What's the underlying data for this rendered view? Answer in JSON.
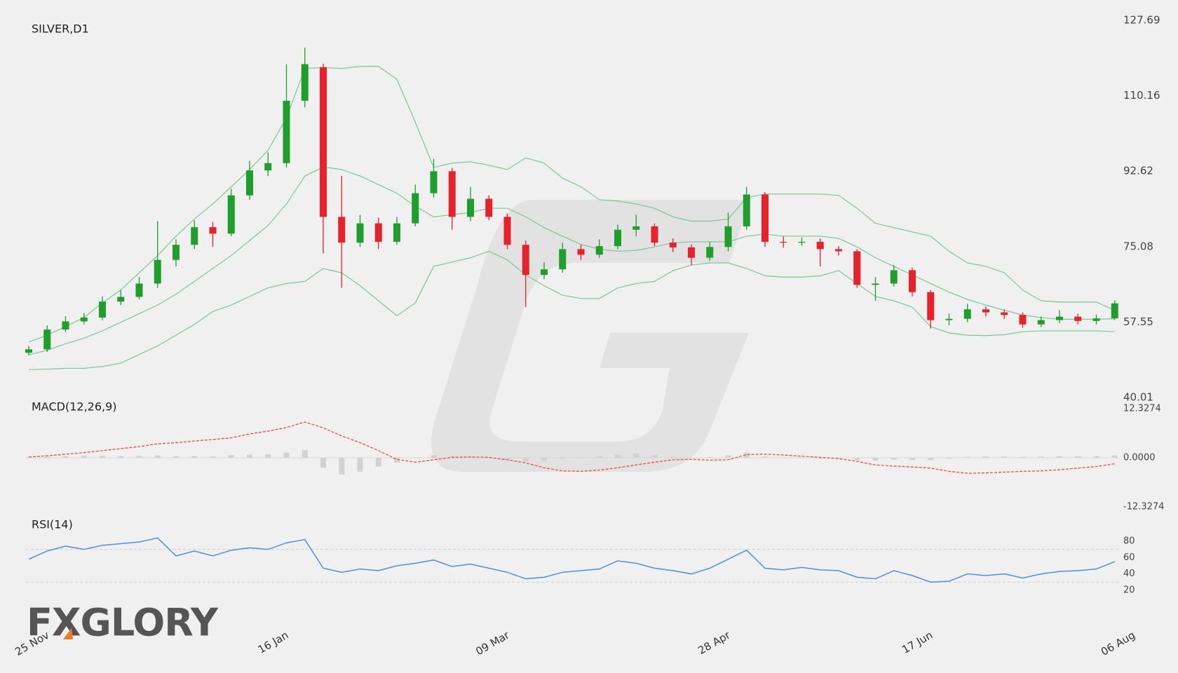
{
  "logo": "FXGLORY",
  "chart_data": [
    {
      "type": "candlestick",
      "title": "SILVER,D1",
      "categories": [
        "25 Nov",
        null,
        null,
        null,
        null,
        null,
        null,
        null,
        null,
        null,
        null,
        null,
        null,
        "16 Jan",
        null,
        null,
        null,
        null,
        null,
        null,
        null,
        null,
        null,
        null,
        null,
        "09 Mar",
        null,
        null,
        null,
        null,
        null,
        null,
        null,
        null,
        null,
        null,
        null,
        "28 Apr",
        null,
        null,
        null,
        null,
        null,
        null,
        null,
        null,
        null,
        null,
        "17 Jun",
        null,
        null,
        null,
        null,
        null,
        null,
        null,
        null,
        null,
        null,
        "06 Aug"
      ],
      "open": [
        50.4,
        51.2,
        55.8,
        57.7,
        58.6,
        62.3,
        63.4,
        66.5,
        72.0,
        75.5,
        79.6,
        78.1,
        87.0,
        92.8,
        94.5,
        109.0,
        116.8,
        82.0,
        76.0,
        80.5,
        76.2,
        80.5,
        87.5,
        92.6,
        82.0,
        86.2,
        82.0,
        75.5,
        68.5,
        69.8,
        74.5,
        73.2,
        75.2,
        79.0,
        79.8,
        76.0,
        74.9,
        72.5,
        75.0,
        79.8,
        87.2,
        76.2,
        76.0,
        76.2,
        74.5,
        74.0,
        66.2,
        66.5,
        69.6,
        64.5,
        58.0,
        58.3,
        60.5,
        59.8,
        59.2,
        57.0,
        58.0,
        58.8,
        57.8,
        58.4
      ],
      "high": [
        52.0,
        56.8,
        58.9,
        59.6,
        63.5,
        65.0,
        68.0,
        81.0,
        76.8,
        81.2,
        80.8,
        88.5,
        95.0,
        97.0,
        117.5,
        121.3,
        117.6,
        91.5,
        82.5,
        81.8,
        82.0,
        89.5,
        95.5,
        93.4,
        89.0,
        87.0,
        82.8,
        76.5,
        71.5,
        76.0,
        75.5,
        76.8,
        80.2,
        82.5,
        80.5,
        77.0,
        75.6,
        76.2,
        83.0,
        89.0,
        87.8,
        77.5,
        77.2,
        77.0,
        75.2,
        74.5,
        68.0,
        70.8,
        70.2,
        65.0,
        59.5,
        61.8,
        61.2,
        60.5,
        59.8,
        58.8,
        60.3,
        59.5,
        59.3,
        62.6
      ],
      "low": [
        49.8,
        50.6,
        55.2,
        57.0,
        58.0,
        61.5,
        62.8,
        65.5,
        70.5,
        74.5,
        75.0,
        77.5,
        86.0,
        91.5,
        93.5,
        107.5,
        73.5,
        65.5,
        75.0,
        74.5,
        75.5,
        79.8,
        86.5,
        79.0,
        81.0,
        81.2,
        74.5,
        61.0,
        67.5,
        69.0,
        72.0,
        72.5,
        74.5,
        77.5,
        75.2,
        73.8,
        70.8,
        71.8,
        74.0,
        79.0,
        75.0,
        74.8,
        75.3,
        70.5,
        73.0,
        65.5,
        62.5,
        65.8,
        63.5,
        56.0,
        56.8,
        57.5,
        58.8,
        58.3,
        56.2,
        56.4,
        57.3,
        57.0,
        57.0,
        58.0
      ],
      "close": [
        51.2,
        55.8,
        57.7,
        58.6,
        62.3,
        63.4,
        66.5,
        72.0,
        75.5,
        79.6,
        78.1,
        87.0,
        92.8,
        94.5,
        109.0,
        117.5,
        82.0,
        76.0,
        80.5,
        76.2,
        80.5,
        87.5,
        92.6,
        82.0,
        86.2,
        82.0,
        75.5,
        68.5,
        69.8,
        74.5,
        73.2,
        75.2,
        79.0,
        79.8,
        76.0,
        74.9,
        72.5,
        75.0,
        79.8,
        87.2,
        76.2,
        76.0,
        76.2,
        74.5,
        74.0,
        66.2,
        66.5,
        69.6,
        64.5,
        58.0,
        58.3,
        60.5,
        59.8,
        59.2,
        57.0,
        58.0,
        58.8,
        57.8,
        58.4,
        61.9
      ],
      "up_color": "#1e9e2a",
      "down_color": "#e8222a",
      "series": [
        {
          "color": "#78c98f",
          "values": [
            52.9,
            54.5,
            56.5,
            58.6,
            62,
            65,
            69,
            73,
            77.5,
            81.5,
            85,
            89,
            93,
            97.5,
            105,
            116.5,
            116.7,
            116.5,
            117,
            117,
            114,
            104,
            93.5,
            94.5,
            94.8,
            94,
            93,
            95.7,
            94.5,
            91,
            89,
            86,
            85.7,
            85,
            84,
            82,
            81,
            81,
            81.5,
            86.5,
            87.3,
            87.3,
            87.3,
            87.3,
            87,
            84,
            80.5,
            79.5,
            78.5,
            77.5,
            74,
            71.3,
            70.5,
            69,
            65,
            62.5,
            62.2,
            62.2,
            62.2,
            60.3
          ]
        },
        {
          "color": "#78c98f",
          "values": [
            49.9,
            51,
            52.5,
            53.8,
            55.5,
            57.5,
            59.5,
            61.5,
            64,
            67,
            70,
            73,
            76.5,
            80,
            85,
            91.5,
            93.6,
            93,
            91.5,
            89.5,
            87.5,
            84.5,
            82,
            82.5,
            83,
            84,
            84,
            82,
            79.5,
            77.5,
            75.6,
            74.5,
            74,
            74.2,
            75,
            76,
            76.2,
            76.2,
            76.2,
            77.5,
            78,
            77.5,
            77.5,
            77.5,
            77,
            75,
            72.5,
            70.5,
            68.5,
            66.5,
            64.5,
            62.8,
            61.5,
            60.3,
            59.2,
            58.6,
            58.2,
            58.2,
            58.2,
            58.3
          ]
        },
        {
          "color": "#78c98f",
          "values": [
            46.5,
            46.6,
            46.8,
            46.8,
            47.2,
            48,
            50,
            52,
            54.5,
            57,
            60,
            61.5,
            63.5,
            65.5,
            66.5,
            67,
            70,
            69,
            66,
            62.5,
            59,
            62,
            70.5,
            71.5,
            72.5,
            74,
            72,
            68.5,
            66,
            63.8,
            63,
            63,
            65.5,
            66.5,
            67,
            69.5,
            70.8,
            71.3,
            71.3,
            70,
            68.3,
            68,
            68,
            68.3,
            69.5,
            66.5,
            63.5,
            62.5,
            61,
            56.5,
            55,
            54.5,
            54.4,
            54.6,
            55.3,
            55.5,
            55.5,
            55.5,
            55.5,
            55.3
          ]
        }
      ],
      "ylim": [
        40.01,
        127.69
      ],
      "yticks": [
        40.01,
        57.55,
        75.08,
        92.62,
        110.16,
        127.69
      ]
    },
    {
      "type": "macd",
      "title": "MACD(12,26,9)",
      "series": [
        {
          "kind": "bar",
          "color": "#d2d2d2",
          "values": [
            0.2,
            0.3,
            0.4,
            0.5,
            0.5,
            0.4,
            0.5,
            0.6,
            0.4,
            0.4,
            0.3,
            0.7,
            0.8,
            0.9,
            1.3,
            1.9,
            -2.5,
            -4.2,
            -3.5,
            -2.2,
            -1.2,
            0.1,
            0.6,
            0.5,
            0.3,
            0.1,
            -0.6,
            -1.0,
            -0.8,
            -0.3,
            0.1,
            0.4,
            0.8,
            1.1,
            0.7,
            0.3,
            0.1,
            0.2,
            0.6,
            1.3,
            0.3,
            0.1,
            -0.1,
            -0.2,
            -0.2,
            -0.6,
            -0.7,
            -0.5,
            -0.6,
            -0.6,
            -0.2,
            0.2,
            0.3,
            0.3,
            0.2,
            0.3,
            0.4,
            0.4,
            0.4,
            0.6
          ]
        },
        {
          "kind": "line",
          "dashed": true,
          "color": "#ee4b45",
          "values": [
            0.2,
            0.5,
            0.9,
            1.3,
            1.8,
            2.3,
            2.8,
            3.5,
            3.8,
            4.2,
            4.6,
            5,
            6,
            6.7,
            7.6,
            9,
            7.5,
            5.5,
            3.8,
            1.8,
            -0.4,
            -1.1,
            -0.5,
            0.1,
            0.2,
            0.1,
            -0.5,
            -1.3,
            -2.5,
            -3.3,
            -3.4,
            -3.1,
            -2.5,
            -1.8,
            -1.1,
            -0.5,
            -0.4,
            -0.6,
            -0.5,
            0.8,
            0.9,
            0.7,
            0.4,
            0.1,
            -0.2,
            -0.9,
            -1.8,
            -2.1,
            -2.3,
            -2.6,
            -3.4,
            -3.9,
            -3.8,
            -3.6,
            -3.4,
            -3.3,
            -3.0,
            -2.6,
            -2.2,
            -1.5
          ]
        }
      ],
      "ylim": [
        -12.3274,
        12.3274
      ],
      "yticks": [
        12.3274,
        {
          "value": 0,
          "label": "0.0000"
        },
        -12.3274
      ]
    },
    {
      "type": "rsi",
      "title": "RSI(14)",
      "color": "#4a90e2",
      "values": [
        58,
        68,
        74,
        70,
        75,
        77,
        79,
        84,
        62,
        68,
        62,
        69,
        72,
        70,
        78,
        82,
        47,
        42,
        46,
        44,
        50,
        53,
        57,
        49,
        52,
        47,
        42,
        34,
        36,
        42,
        44,
        46,
        56,
        53,
        47,
        44,
        40,
        47,
        58,
        69,
        47,
        45,
        48,
        45,
        44,
        36,
        34,
        44,
        38,
        30,
        31,
        40,
        38,
        40,
        35,
        40,
        43,
        44,
        46,
        55
      ],
      "ylim": [
        20,
        80
      ],
      "yticks": [
        80,
        60,
        40,
        20
      ],
      "levels": [
        70,
        30
      ]
    }
  ]
}
